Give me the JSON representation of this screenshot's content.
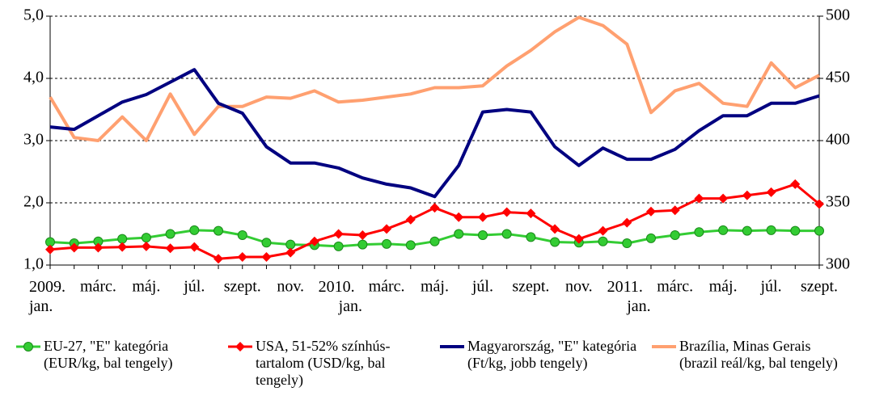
{
  "chart_data": {
    "type": "line",
    "categories": [
      "2009. jan.",
      null,
      "márc.",
      null,
      "máj.",
      null,
      "júl.",
      null,
      "szept.",
      null,
      "nov.",
      null,
      "2010. jan.",
      null,
      "márc.",
      null,
      "máj.",
      null,
      "júl.",
      null,
      "szept.",
      null,
      "nov.",
      null,
      "2011. jan.",
      null,
      "márc.",
      null,
      "máj.",
      null,
      "júl.",
      null,
      "szept."
    ],
    "series": [
      {
        "name": "EU-27, \"E\" kategória (EUR/kg, bal tengely)",
        "color": "#33cc33",
        "marker": "circle",
        "values": [
          1.37,
          1.35,
          1.38,
          1.42,
          1.44,
          1.5,
          1.56,
          1.55,
          1.48,
          1.36,
          1.33,
          1.32,
          1.3,
          1.33,
          1.34,
          1.32,
          1.38,
          1.5,
          1.48,
          1.5,
          1.45,
          1.37,
          1.36,
          1.38,
          1.35,
          1.43,
          1.48,
          1.53,
          1.56,
          1.55,
          1.56,
          1.55,
          1.55
        ]
      },
      {
        "name": "USA, 51-52% színhús-tartalom (USD/kg, bal tengely)",
        "color": "#ff0000",
        "marker": "diamond",
        "values": [
          1.25,
          1.28,
          1.28,
          1.29,
          1.3,
          1.27,
          1.29,
          1.1,
          1.13,
          1.13,
          1.2,
          1.38,
          1.5,
          1.48,
          1.58,
          1.73,
          1.92,
          1.77,
          1.77,
          1.85,
          1.83,
          1.58,
          1.42,
          1.55,
          1.68,
          1.86,
          1.88,
          2.07,
          2.07,
          2.12,
          2.17,
          2.3,
          1.98
        ]
      },
      {
        "name": "Magyarország, \"E\" kategória (Ft/kg, jobb tengely)",
        "color": "#000080",
        "axis": "y2",
        "values": [
          411,
          409,
          420,
          431,
          437,
          447,
          457,
          430,
          422,
          395,
          382,
          382,
          378,
          370,
          365,
          362,
          355,
          380,
          423,
          425,
          423,
          395,
          380,
          394,
          385,
          385,
          393,
          408,
          420,
          420,
          430,
          430,
          436
        ]
      },
      {
        "name": "Brazília, Minas Gerais (brazil reál/kg, bal tengely)",
        "color": "#ffa070",
        "values": [
          3.7,
          3.05,
          3.0,
          3.38,
          3.0,
          3.75,
          3.1,
          3.55,
          3.55,
          3.7,
          3.68,
          3.8,
          3.62,
          3.65,
          3.7,
          3.75,
          3.85,
          3.85,
          3.88,
          4.2,
          4.45,
          4.75,
          4.98,
          4.85,
          4.55,
          3.45,
          3.8,
          3.92,
          3.6,
          3.55,
          4.25,
          3.85,
          4.05
        ]
      }
    ],
    "ylim": [
      1,
      5
    ],
    "yticks": [
      {
        "value": 1,
        "label": "1,0"
      },
      {
        "value": 2,
        "label": "2,0"
      },
      {
        "value": 3,
        "label": "3,0"
      },
      {
        "value": 4,
        "label": "4,0"
      },
      {
        "value": 5,
        "label": "5,0"
      }
    ],
    "y2lim": [
      300,
      500
    ],
    "y2ticks": [
      300,
      350,
      400,
      450,
      500
    ],
    "grid": true
  }
}
